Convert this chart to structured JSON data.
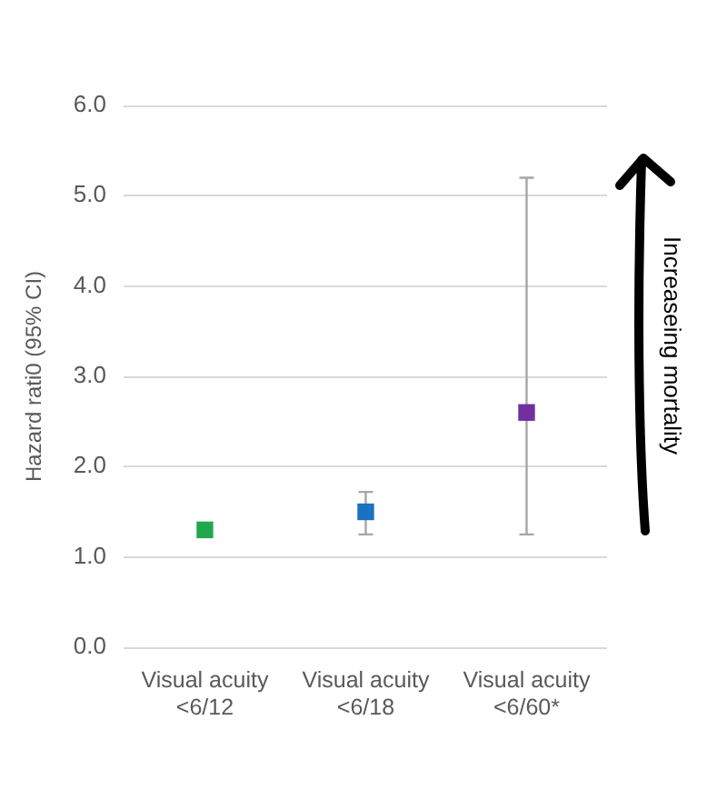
{
  "chart_data": {
    "type": "scatter",
    "ylabel": "Hazard rati0 (95% CI)",
    "categories": [
      "Visual acuity\n<6/12",
      "Visual acuity\n<6/18",
      "Visual acuity\n<6/60*"
    ],
    "values": [
      1.3,
      1.5,
      2.6
    ],
    "colors": [
      "#22a84c",
      "#1a72c0",
      "#7030a0"
    ],
    "errors": [
      null,
      [
        1.25,
        1.72
      ],
      [
        1.25,
        5.2
      ]
    ],
    "ylim": [
      0,
      6
    ],
    "yticks": [
      {
        "value": 0,
        "label": "0.0"
      },
      {
        "value": 1,
        "label": "1.0"
      },
      {
        "value": 2,
        "label": "2.0"
      },
      {
        "value": 3,
        "label": "3.0"
      },
      {
        "value": 4,
        "label": "4.0"
      },
      {
        "value": 5,
        "label": "5.0"
      },
      {
        "value": 6,
        "label": "6.0"
      }
    ],
    "grid": "y",
    "marker": "square",
    "annotations": [
      "Increaseing mortality"
    ]
  }
}
